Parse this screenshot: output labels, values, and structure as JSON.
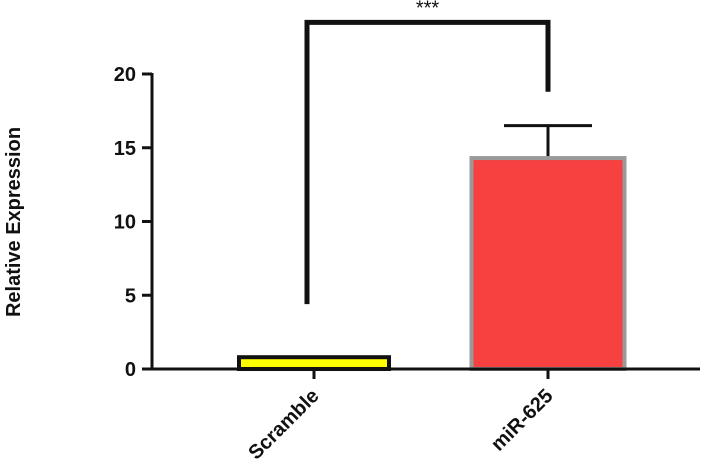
{
  "chart_data": {
    "type": "bar",
    "title": "",
    "xlabel": "",
    "ylabel": "Relative Expression",
    "ylim": [
      0,
      20
    ],
    "yticks": [
      "0",
      "5",
      "10",
      "15",
      "20"
    ],
    "categories": [
      "Scramble",
      "miR-625"
    ],
    "values": [
      0.8,
      14.3
    ],
    "errors": [
      0,
      2.2
    ],
    "bar_fill_colors": [
      "#ffff00",
      "#f74040"
    ],
    "bar_edge_colors": [
      "#111111",
      "#9a9a9a"
    ],
    "significance": {
      "label": "***",
      "between": [
        0,
        1
      ],
      "bracket_y": 23.5,
      "left_end_y": 4.4,
      "right_end_y": 18.8
    },
    "grid": false,
    "legend": "none"
  }
}
